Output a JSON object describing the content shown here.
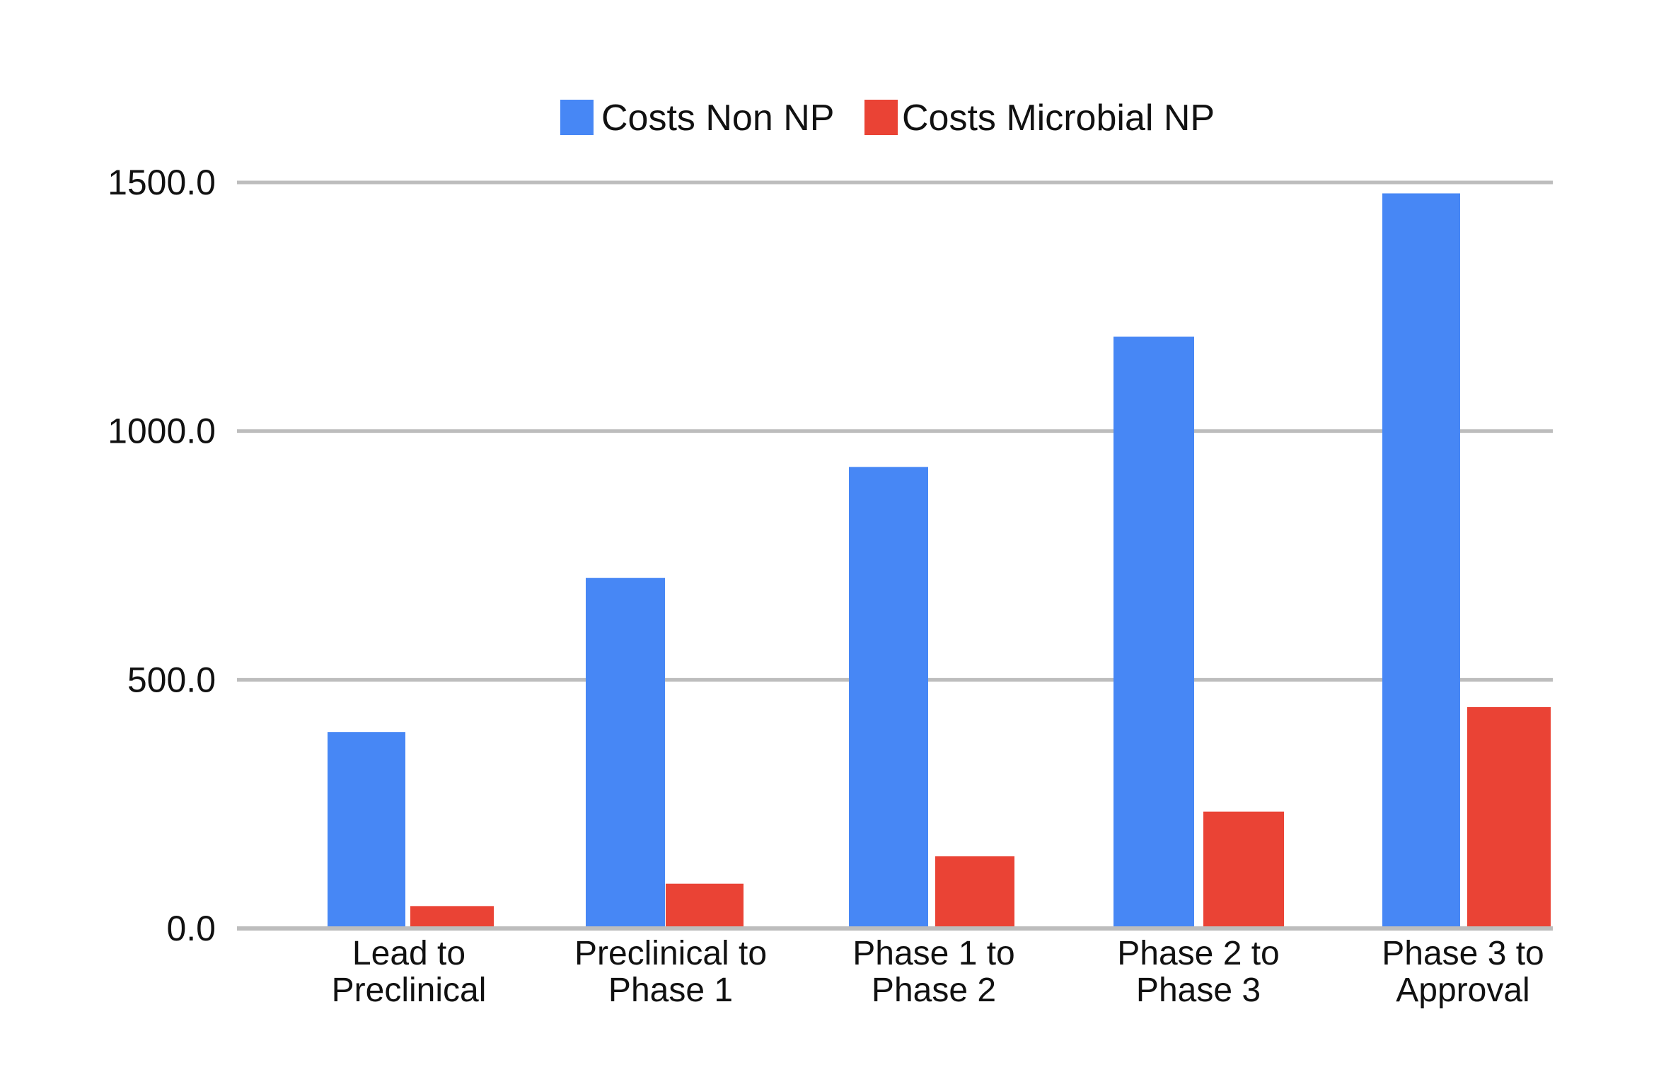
{
  "chart_data": {
    "type": "bar",
    "categories": [
      [
        "Lead to",
        "Preclinical"
      ],
      [
        "Preclinical to",
        "Phase 1"
      ],
      [
        "Phase 1 to",
        "Phase 2"
      ],
      [
        "Phase 2 to",
        "Phase 3"
      ],
      [
        "Phase 3 to",
        "Approval"
      ]
    ],
    "series": [
      {
        "name": "Costs Non NP",
        "color": "#4787F5",
        "values": [
          395,
          705,
          928,
          1190,
          1478
        ]
      },
      {
        "name": "Costs Microbial NP",
        "color": "#EA4335",
        "values": [
          45,
          90,
          145,
          235,
          445
        ]
      }
    ],
    "y_ticks": [
      "0.0",
      "500.0",
      "1000.0",
      "1500.0"
    ],
    "ylim": [
      0,
      1500
    ],
    "grid": true,
    "gridline_color": "#BDBDBD",
    "legend_position": "top-center",
    "title": "",
    "xlabel": "",
    "ylabel": ""
  }
}
